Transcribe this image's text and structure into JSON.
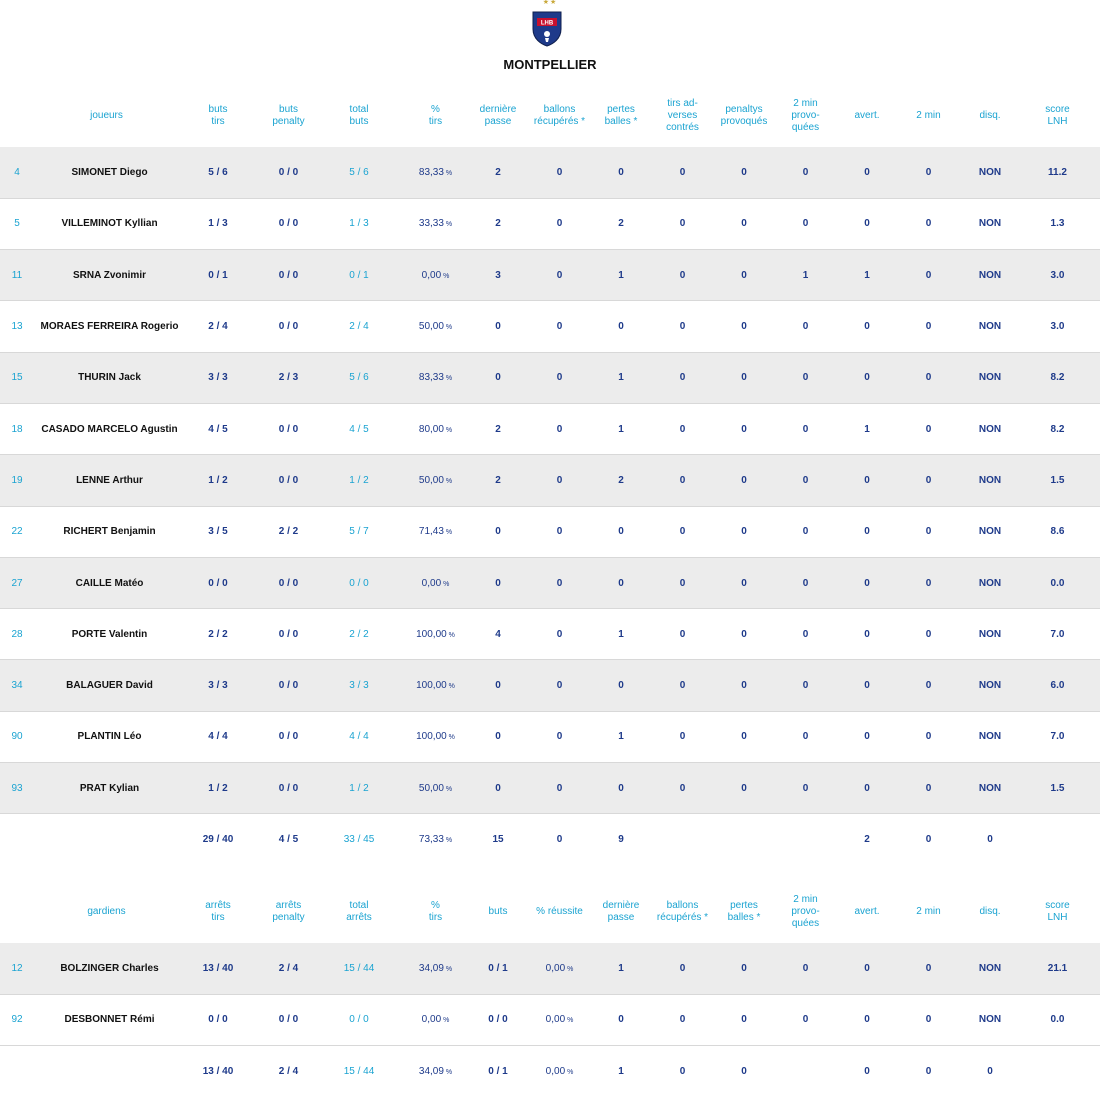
{
  "team": {
    "name": "MONTPELLIER",
    "stars": "★★",
    "logo_text": "LHB"
  },
  "players": {
    "headers": [
      "",
      "joueurs",
      "buts\ntirs",
      "buts\npenalty",
      "total\nbuts",
      "%\ntirs",
      "dernière\npasse",
      "ballons\nrécupérés *",
      "pertes\nballes *",
      "tirs ad-\nverses\ncontrés",
      "penaltys\nprovoqués",
      "2 min\nprovo-\nquées",
      "avert.",
      "2 min",
      "disq.",
      "score\nLNH"
    ],
    "rows": [
      [
        "4",
        "SIMONET Diego",
        "5 / 6",
        "0 / 0",
        "5 / 6",
        "83,33",
        "2",
        "0",
        "0",
        "0",
        "0",
        "0",
        "0",
        "0",
        "NON",
        "11.2"
      ],
      [
        "5",
        "VILLEMINOT Kyllian",
        "1 / 3",
        "0 / 0",
        "1 / 3",
        "33,33",
        "2",
        "0",
        "2",
        "0",
        "0",
        "0",
        "0",
        "0",
        "NON",
        "1.3"
      ],
      [
        "11",
        "SRNA Zvonimir",
        "0 / 1",
        "0 / 0",
        "0 / 1",
        "0,00",
        "3",
        "0",
        "1",
        "0",
        "0",
        "1",
        "1",
        "0",
        "NON",
        "3.0"
      ],
      [
        "13",
        "MORAES FERREIRA Rogerio",
        "2 / 4",
        "0 / 0",
        "2 / 4",
        "50,00",
        "0",
        "0",
        "0",
        "0",
        "0",
        "0",
        "0",
        "0",
        "NON",
        "3.0"
      ],
      [
        "15",
        "THURIN Jack",
        "3 / 3",
        "2 / 3",
        "5 / 6",
        "83,33",
        "0",
        "0",
        "1",
        "0",
        "0",
        "0",
        "0",
        "0",
        "NON",
        "8.2"
      ],
      [
        "18",
        "CASADO MARCELO Agustin",
        "4 / 5",
        "0 / 0",
        "4 / 5",
        "80,00",
        "2",
        "0",
        "1",
        "0",
        "0",
        "0",
        "1",
        "0",
        "NON",
        "8.2"
      ],
      [
        "19",
        "LENNE Arthur",
        "1 / 2",
        "0 / 0",
        "1 / 2",
        "50,00",
        "2",
        "0",
        "2",
        "0",
        "0",
        "0",
        "0",
        "0",
        "NON",
        "1.5"
      ],
      [
        "22",
        "RICHERT Benjamin",
        "3 / 5",
        "2 / 2",
        "5 / 7",
        "71,43",
        "0",
        "0",
        "0",
        "0",
        "0",
        "0",
        "0",
        "0",
        "NON",
        "8.6"
      ],
      [
        "27",
        "CAILLE Matéo",
        "0 / 0",
        "0 / 0",
        "0 / 0",
        "0,00",
        "0",
        "0",
        "0",
        "0",
        "0",
        "0",
        "0",
        "0",
        "NON",
        "0.0"
      ],
      [
        "28",
        "PORTE Valentin",
        "2 / 2",
        "0 / 0",
        "2 / 2",
        "100,00",
        "4",
        "0",
        "1",
        "0",
        "0",
        "0",
        "0",
        "0",
        "NON",
        "7.0"
      ],
      [
        "34",
        "BALAGUER David",
        "3 / 3",
        "0 / 0",
        "3 / 3",
        "100,00",
        "0",
        "0",
        "0",
        "0",
        "0",
        "0",
        "0",
        "0",
        "NON",
        "6.0"
      ],
      [
        "90",
        "PLANTIN Léo",
        "4 / 4",
        "0 / 0",
        "4 / 4",
        "100,00",
        "0",
        "0",
        "1",
        "0",
        "0",
        "0",
        "0",
        "0",
        "NON",
        "7.0"
      ],
      [
        "93",
        "PRAT Kylian",
        "1 / 2",
        "0 / 0",
        "1 / 2",
        "50,00",
        "0",
        "0",
        "0",
        "0",
        "0",
        "0",
        "0",
        "0",
        "NON",
        "1.5"
      ]
    ],
    "totals": [
      "",
      "",
      "29 / 40",
      "4 / 5",
      "33 / 45",
      "73,33",
      "15",
      "0",
      "9",
      "",
      "",
      "",
      "2",
      "0",
      "0",
      ""
    ]
  },
  "goalkeepers": {
    "headers": [
      "",
      "gardiens",
      "arrêts\ntirs",
      "arrêts\npenalty",
      "total\narrêts",
      "%\ntirs",
      "buts",
      "% réussite",
      "dernière\npasse",
      "ballons\nrécupérés *",
      "pertes\nballes *",
      "2 min\nprovo-\nquées",
      "avert.",
      "2 min",
      "disq.",
      "score\nLNH"
    ],
    "rows": [
      [
        "12",
        "BOLZINGER Charles",
        "13 / 40",
        "2 / 4",
        "15 / 44",
        "34,09",
        "0 / 1",
        "0,00",
        "1",
        "0",
        "0",
        "0",
        "0",
        "0",
        "NON",
        "21.1"
      ],
      [
        "92",
        "DESBONNET Rémi",
        "0 / 0",
        "0 / 0",
        "0 / 0",
        "0,00",
        "0 / 0",
        "0,00",
        "0",
        "0",
        "0",
        "0",
        "0",
        "0",
        "NON",
        "0.0"
      ]
    ],
    "totals": [
      "",
      "",
      "13 / 40",
      "2 / 4",
      "15 / 44",
      "34,09",
      "0 / 1",
      "0,00",
      "1",
      "0",
      "0",
      "",
      "0",
      "0",
      "0",
      ""
    ]
  },
  "pct_symbol": "%",
  "colors": {
    "accent": "#1aa3d1",
    "value": "#1e3a8a",
    "stripe": "#ececec"
  }
}
